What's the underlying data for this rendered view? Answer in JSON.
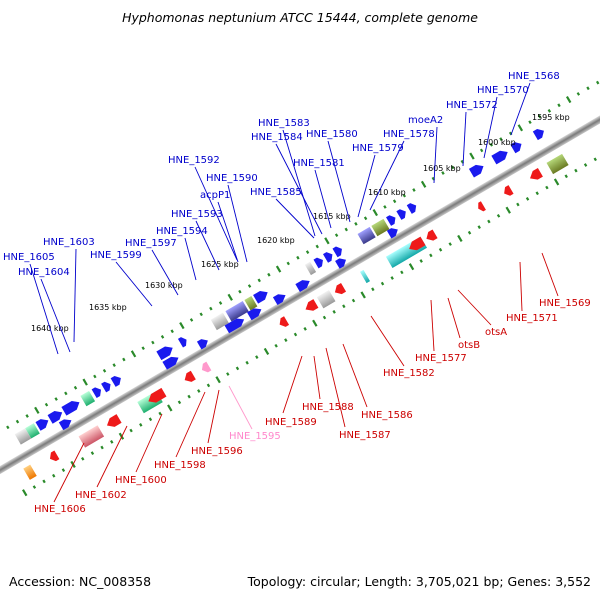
{
  "title": "Hyphomonas neptunium ATCC 15444, complete genome",
  "accession": "Accession: NC_008358",
  "topology": "Topology: circular; Length: 3,705,021 bp; Genes: 3,552",
  "colors": {
    "forward": "#1a1aee",
    "reverse": "#ee1a1a",
    "pseudo_reverse": "#ff99cc",
    "tick": "#2a8a2a",
    "backbone": "#808080"
  },
  "kbp_ticks": [
    "1595 kbp",
    "1600 kbp",
    "1605 kbp",
    "1610 kbp",
    "1615 kbp",
    "1620 kbp",
    "1625 kbp",
    "1630 kbp",
    "1635 kbp",
    "1640 kbp"
  ],
  "forward_labels": [
    "HNE_1568",
    "HNE_1570",
    "HNE_1572",
    "moeA2",
    "HNE_1578",
    "HNE_1579",
    "HNE_1580",
    "HNE_1581",
    "HNE_1583",
    "HNE_1584",
    "HNE_1585",
    "HNE_1590",
    "HNE_1592",
    "acpP1",
    "HNE_1593",
    "HNE_1594",
    "HNE_1597",
    "HNE_1599",
    "HNE_1603",
    "HNE_1604",
    "HNE_1605"
  ],
  "reverse_labels": [
    "HNE_1569",
    "HNE_1571",
    "otsA",
    "otsB",
    "HNE_1577",
    "HNE_1582",
    "HNE_1586",
    "HNE_1587",
    "HNE_1588",
    "HNE_1589",
    "HNE_1595",
    "HNE_1596",
    "HNE_1598",
    "HNE_1600",
    "HNE_1602",
    "HNE_1606"
  ]
}
